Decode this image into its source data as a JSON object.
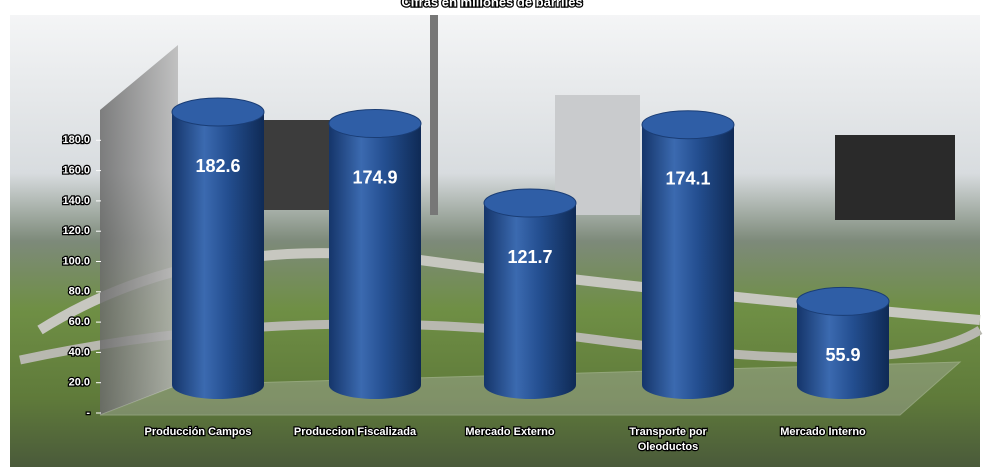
{
  "chart_data": {
    "type": "bar",
    "title": "Cifras en millones de barriles",
    "categories": [
      "Producción Campos",
      "Produccion  Fiscalizada",
      "Mercado Externo",
      "Transporte por Oleoductos",
      "Mercado Interno"
    ],
    "values": [
      182.6,
      174.9,
      121.7,
      174.1,
      55.9
    ],
    "color": "#1f4e8c",
    "ylim": [
      0,
      200
    ],
    "yticks": [
      {
        "value": 0,
        "label": "-"
      },
      {
        "value": 20,
        "label": "20.0"
      },
      {
        "value": 40,
        "label": "40.0"
      },
      {
        "value": 60,
        "label": "60.0"
      },
      {
        "value": 80,
        "label": "80.0"
      },
      {
        "value": 100,
        "label": "100.0"
      },
      {
        "value": 120,
        "label": "120.0"
      },
      {
        "value": 140,
        "label": "140.0"
      },
      {
        "value": 160,
        "label": "160.0"
      },
      {
        "value": 180,
        "label": "180.0"
      }
    ]
  }
}
